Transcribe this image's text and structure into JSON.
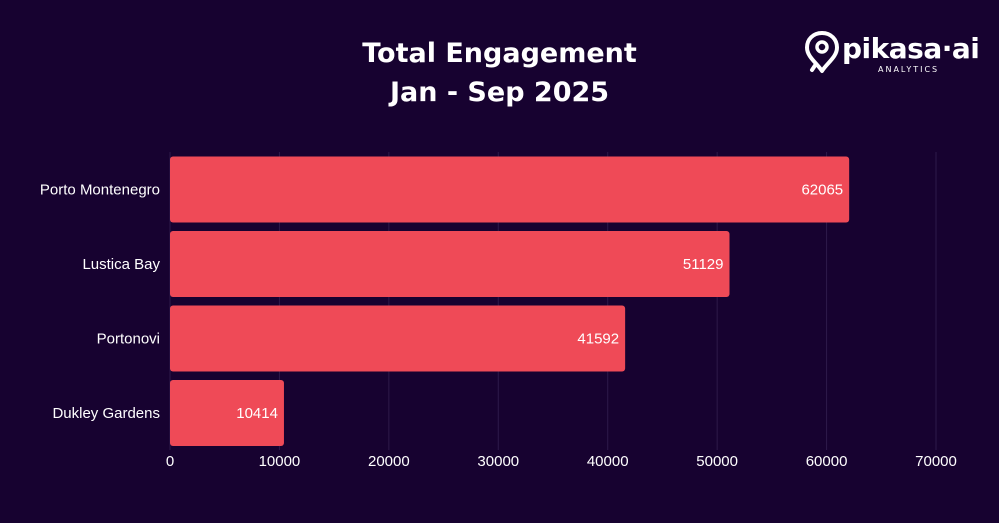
{
  "chart_data": {
    "type": "bar",
    "orientation": "horizontal",
    "title": "Total Engagement",
    "subtitle": "Jan - Sep 2025",
    "categories": [
      "Porto Montenegro",
      "Lustica Bay",
      "Portonovi",
      "Dukley Gardens"
    ],
    "values": [
      62065,
      51129,
      41592,
      10414
    ],
    "xlim": [
      0,
      70000
    ],
    "xticks": [
      0,
      10000,
      20000,
      30000,
      40000,
      50000,
      60000,
      70000
    ],
    "xlabel": "",
    "ylabel": "",
    "grid": true,
    "bar_color": "#ef4a57",
    "grid_color": "#2e1a4a",
    "background_color": "#170230"
  },
  "logo": {
    "wordmark": "pikasa·ai",
    "subtext": "ANALYTICS",
    "icon": "location-pin-icon"
  }
}
